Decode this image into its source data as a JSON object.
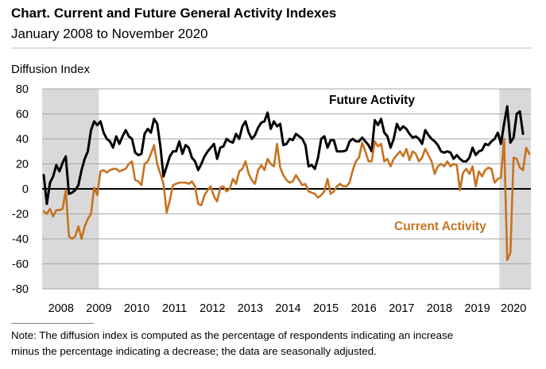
{
  "title": "Chart. Current and Future General Activity Indexes",
  "subtitle": "January 2008 to November 2020",
  "note": {
    "line1": "Note: The diffusion index is computed as the percentage of respondents indicating an increase",
    "line2": "minus the percentage indicating a decrease; the data are seasonally adjusted."
  },
  "colors": {
    "future": "#000000",
    "current": "#c6721f",
    "recession": "#d9d9d9",
    "grid": "#a6a6a6",
    "zero_line": "#000000"
  },
  "chart_data": {
    "type": "line",
    "ylabel": "Diffusion Index",
    "ylim": [
      -80,
      80
    ],
    "yticks": [
      -80,
      -60,
      -40,
      -20,
      0,
      20,
      40,
      60,
      80
    ],
    "xlabels": [
      "2008",
      "2009",
      "2010",
      "2011",
      "2012",
      "2013",
      "2014",
      "2015",
      "2016",
      "2017",
      "2018",
      "2019",
      "2020"
    ],
    "x_start": "2008-01",
    "x_end": "2020-11",
    "grid": "horizontal",
    "shaded_periods": [
      {
        "start": "2008-01",
        "end": "2009-06"
      },
      {
        "start": "2020-02",
        "end": "2020-11"
      }
    ],
    "annotations": [
      {
        "text": "Future Activity",
        "series": "Future Activity"
      },
      {
        "text": "Current Activity",
        "series": "Current Activity"
      }
    ],
    "series": [
      {
        "name": "Future Activity",
        "color": "#000000",
        "values": [
          11,
          -12,
          5,
          10,
          19,
          14,
          21,
          26,
          -4,
          -3,
          -1,
          3,
          15,
          24,
          30,
          47,
          54,
          51,
          54,
          45,
          40,
          38,
          33,
          42,
          36,
          42,
          47,
          42,
          40,
          29,
          27,
          28,
          44,
          48,
          45,
          56,
          52,
          34,
          10,
          18,
          26,
          30,
          30,
          38,
          28,
          35,
          33,
          25,
          22,
          15,
          20,
          26,
          30,
          33,
          36,
          24,
          33,
          34,
          40,
          38,
          37,
          44,
          40,
          50,
          54,
          45,
          40,
          43,
          49,
          53,
          54,
          61,
          48,
          54,
          50,
          52,
          35,
          36,
          40,
          39,
          44,
          42,
          40,
          35,
          18,
          19,
          16,
          25,
          40,
          42,
          33,
          39,
          39,
          30,
          30,
          30,
          31,
          38,
          40,
          38,
          38,
          41,
          38,
          35,
          30,
          55,
          51,
          56,
          45,
          42,
          33,
          40,
          52,
          47,
          50,
          48,
          44,
          41,
          42,
          40,
          36,
          47,
          43,
          40,
          38,
          35,
          30,
          29,
          30,
          29,
          24,
          27,
          24,
          22,
          22,
          25,
          33,
          27,
          30,
          31,
          36,
          35,
          38,
          40,
          45,
          36,
          52,
          66,
          37,
          41,
          60,
          62,
          44
        ]
      },
      {
        "name": "Current Activity",
        "color": "#c6721f",
        "values": [
          -18,
          -20,
          -16,
          -22,
          -17,
          -17,
          -16,
          -1,
          -38,
          -40,
          -38,
          -30,
          -40,
          -30,
          -24,
          -20,
          1,
          -5,
          14,
          15,
          13,
          15,
          16,
          16,
          14,
          15,
          16,
          20,
          22,
          7,
          6,
          3,
          20,
          22,
          28,
          35,
          20,
          12,
          4,
          -19,
          -9,
          3,
          4,
          5,
          5,
          5,
          4,
          6,
          2,
          -12,
          -13,
          -5,
          -1,
          2,
          -6,
          -10,
          1,
          2,
          -2,
          0,
          8,
          4,
          14,
          16,
          22,
          12,
          7,
          4,
          15,
          19,
          15,
          24,
          20,
          18,
          36,
          17,
          11,
          7,
          5,
          6,
          11,
          7,
          3,
          4,
          -2,
          -3,
          -4,
          -7,
          -5,
          -2,
          8,
          -4,
          -2,
          2,
          4,
          2,
          2,
          5,
          15,
          22,
          25,
          37,
          30,
          22,
          22,
          38,
          34,
          36,
          22,
          24,
          18,
          24,
          27,
          30,
          26,
          32,
          23,
          30,
          28,
          22,
          25,
          32,
          27,
          22,
          12,
          18,
          20,
          18,
          22,
          18,
          20,
          19,
          -1,
          13,
          16,
          12,
          18,
          2,
          14,
          10,
          15,
          17,
          16,
          5,
          8,
          9,
          40,
          -57,
          -51,
          25,
          24,
          17,
          15,
          33,
          28
        ]
      }
    ]
  }
}
